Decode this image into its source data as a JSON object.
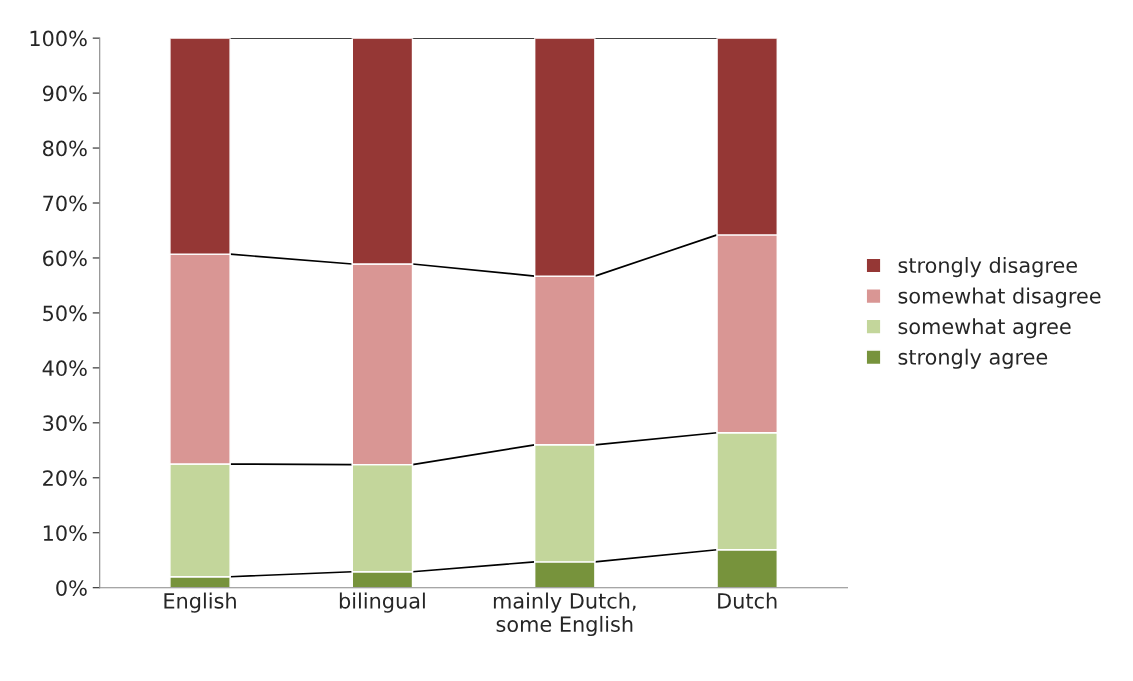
{
  "chart_data": {
    "type": "bar",
    "stacked": true,
    "categories": [
      "English",
      "bilingual",
      "mainly Dutch,\nsome English",
      "Dutch"
    ],
    "series": [
      {
        "name": "strongly agree",
        "color": "#77933c",
        "values": [
          2.0,
          2.9,
          4.7,
          6.9
        ]
      },
      {
        "name": "somewhat agree",
        "color": "#c3d69b",
        "values": [
          20.5,
          19.5,
          21.3,
          21.3
        ]
      },
      {
        "name": "somewhat disagree",
        "color": "#d99694",
        "values": [
          38.2,
          36.5,
          30.7,
          36.0
        ]
      },
      {
        "name": "strongly disagree",
        "color": "#953735",
        "values": [
          39.3,
          41.1,
          43.3,
          35.8
        ]
      }
    ],
    "ylim": [
      0,
      100
    ],
    "yticks": [
      {
        "value": 0,
        "label": "0%"
      },
      {
        "value": 10,
        "label": "10%"
      },
      {
        "value": 20,
        "label": "20%"
      },
      {
        "value": 30,
        "label": "30%"
      },
      {
        "value": 40,
        "label": "40%"
      },
      {
        "value": 50,
        "label": "50%"
      },
      {
        "value": 60,
        "label": "60%"
      },
      {
        "value": 70,
        "label": "70%"
      },
      {
        "value": 80,
        "label": "80%"
      },
      {
        "value": 90,
        "label": "90%"
      },
      {
        "value": 100,
        "label": "100%"
      }
    ],
    "grid": false,
    "legend": "right"
  }
}
